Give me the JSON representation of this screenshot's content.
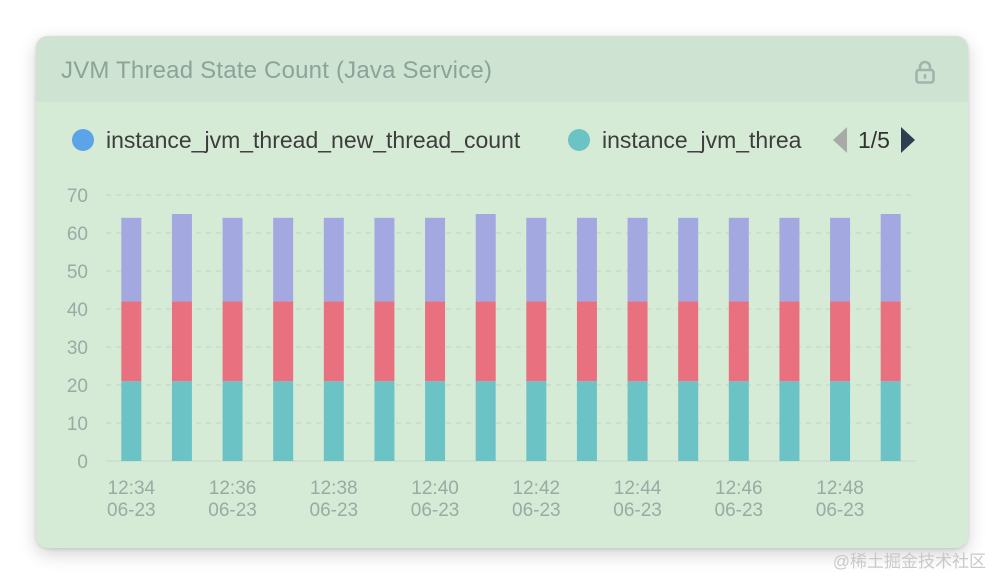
{
  "panel": {
    "title": "JVM Thread State Count (Java Service)",
    "lock_icon": "lock-icon"
  },
  "legend": {
    "items": [
      {
        "label": "instance_jvm_thread_new_thread_count",
        "color": "#5ba4e8"
      },
      {
        "label": "instance_jvm_threa",
        "color": "#6cc3c6"
      }
    ],
    "pager": {
      "prev_icon": "caret-left-icon",
      "next_icon": "caret-right-icon",
      "text": "1/5"
    }
  },
  "watermark": "@稀土掘金技术社区",
  "chart_data": {
    "type": "bar",
    "stacked": true,
    "title": "JVM Thread State Count (Java Service)",
    "categories": [
      "12:34\n06-23",
      "",
      "12:36\n06-23",
      "",
      "12:38\n06-23",
      "",
      "12:40\n06-23",
      "",
      "12:42\n06-23",
      "",
      "12:44\n06-23",
      "",
      "12:46\n06-23",
      "",
      "12:48\n06-23",
      ""
    ],
    "series": [
      {
        "color": "#6cc3c6",
        "values": [
          21,
          21,
          21,
          21,
          21,
          21,
          21,
          21,
          21,
          21,
          21,
          21,
          21,
          21,
          21,
          21
        ]
      },
      {
        "color": "#e9707f",
        "values": [
          21,
          21,
          21,
          21,
          21,
          21,
          21,
          21,
          21,
          21,
          21,
          21,
          21,
          21,
          21,
          21
        ]
      },
      {
        "color": "#a3a8e1",
        "values": [
          22,
          23,
          22,
          22,
          22,
          22,
          22,
          23,
          22,
          22,
          22,
          22,
          22,
          22,
          22,
          23
        ]
      }
    ],
    "yticks": [
      0,
      10,
      20,
      30,
      40,
      50,
      60,
      70
    ],
    "ylim": [
      0,
      70
    ],
    "grid": true
  }
}
